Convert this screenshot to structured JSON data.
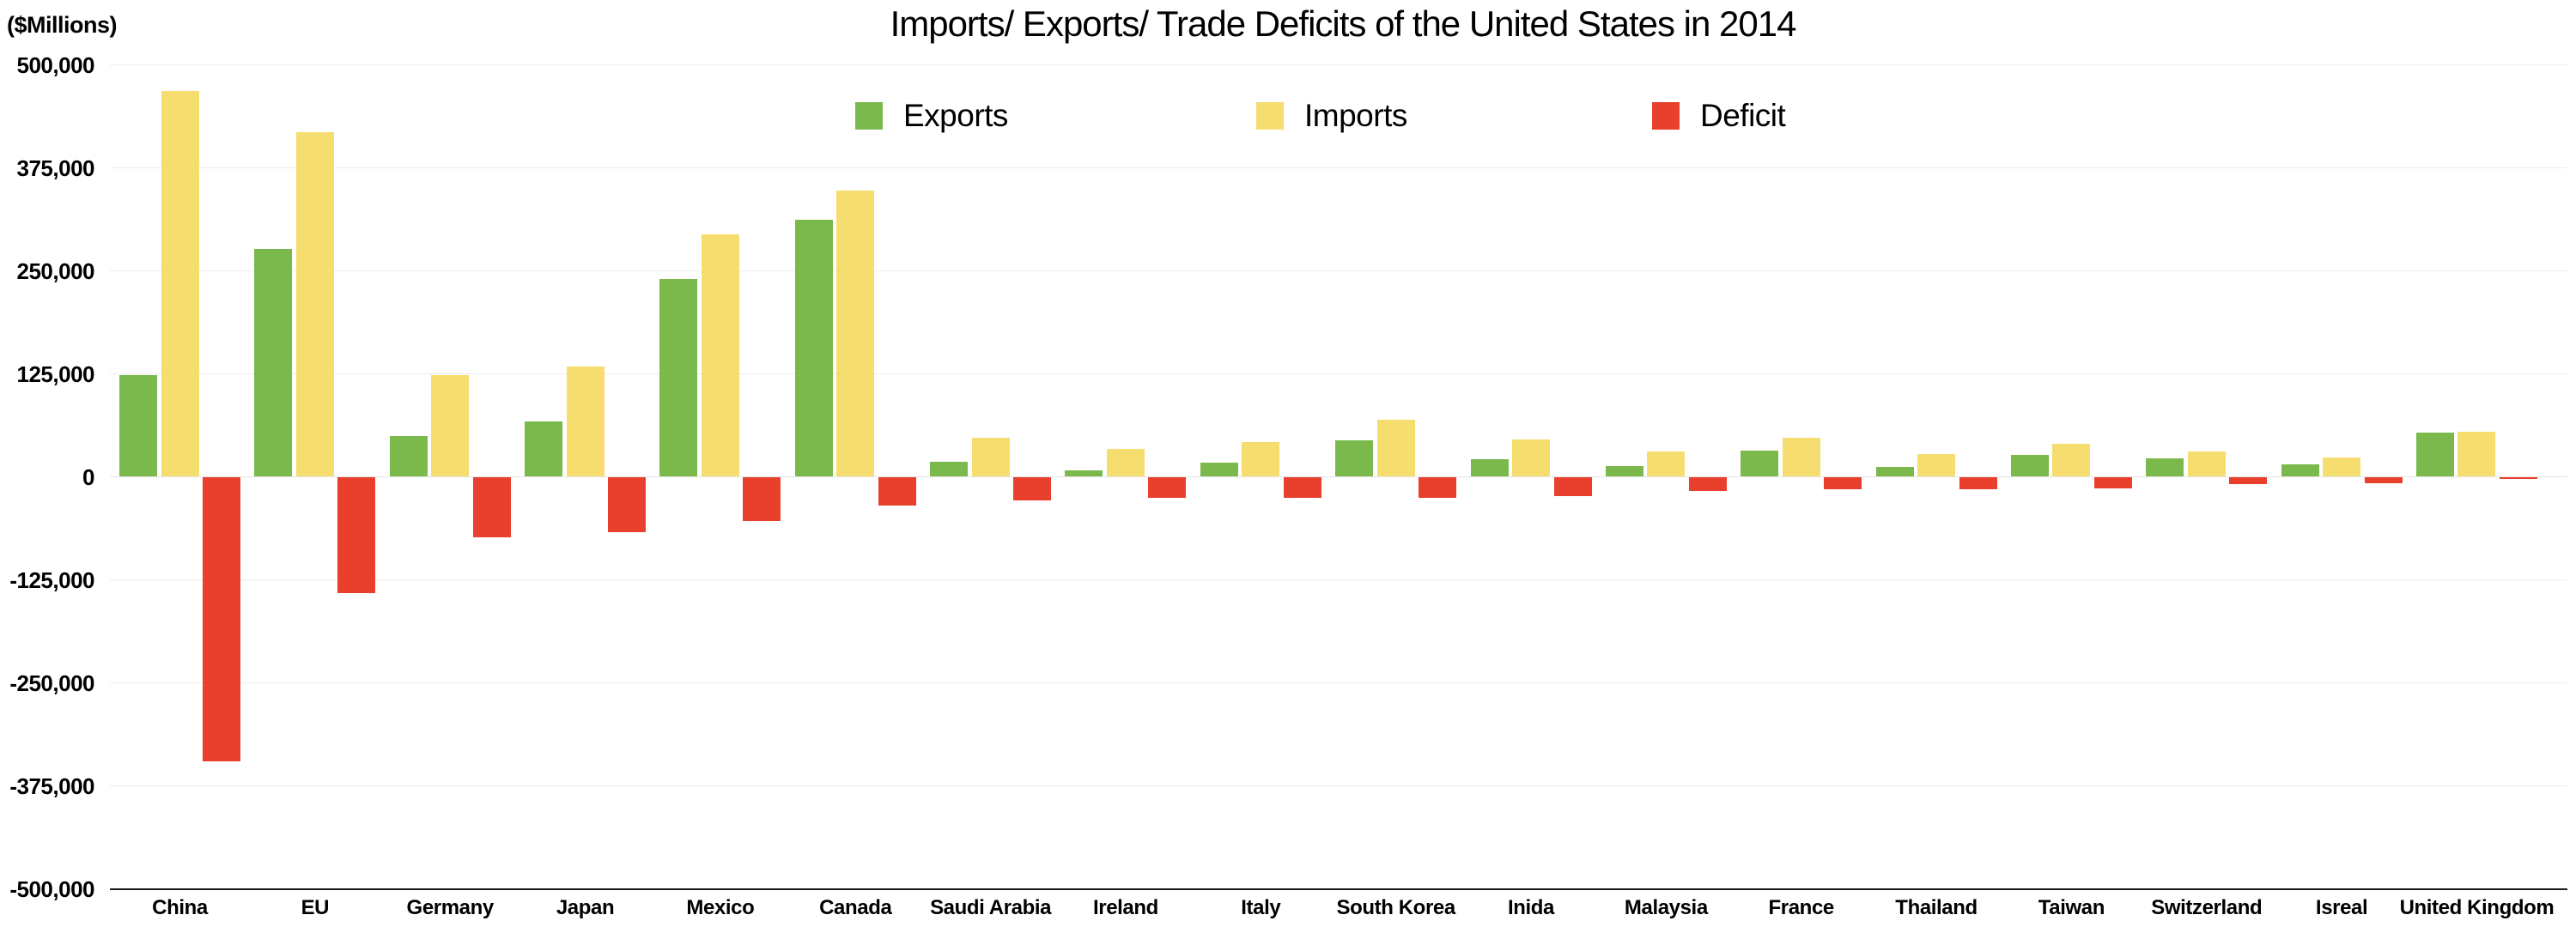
{
  "header": {
    "unit_label": "($Millions)",
    "title": "Imports/ Exports/ Trade Deficits of the United States in 2014"
  },
  "legend": [
    {
      "label": "Exports",
      "color": "#7bb94d"
    },
    {
      "label": "Imports",
      "color": "#f6dd6f"
    },
    {
      "label": "Deficit",
      "color": "#e8402d"
    }
  ],
  "chart_data": {
    "type": "bar",
    "title": "Imports/ Exports/ Trade Deficits of the United States in 2014",
    "unit": "$Millions",
    "categories": [
      "China",
      "EU",
      "Germany",
      "Japan",
      "Mexico",
      "Canada",
      "Saudi Arabia",
      "Ireland",
      "Italy",
      "South Korea",
      "Inida",
      "Malaysia",
      "France",
      "Thailand",
      "Taiwan",
      "Switzerland",
      "Isreal",
      "United Kingdom"
    ],
    "series": [
      {
        "name": "Exports",
        "color": "#7bb94d",
        "values": [
          123700,
          276700,
          49400,
          66800,
          240200,
          312400,
          18700,
          8000,
          17000,
          44500,
          21600,
          13100,
          31300,
          11800,
          26700,
          22200,
          15100,
          53800
        ]
      },
      {
        "name": "Imports",
        "color": "#f6dd6f",
        "values": [
          468500,
          417800,
          123300,
          133900,
          294200,
          347800,
          47000,
          34000,
          42100,
          69500,
          45400,
          30400,
          46900,
          27100,
          40600,
          31200,
          23000,
          54400
        ]
      },
      {
        "name": "Deficit",
        "color": "#e8402d",
        "values": [
          -344800,
          -141100,
          -73900,
          -67100,
          -53900,
          -35400,
          -28300,
          -26000,
          -25100,
          -25000,
          -23800,
          -17300,
          -15600,
          -15300,
          -13900,
          -9000,
          -7900,
          -600
        ]
      }
    ],
    "ylim": [
      -500000,
      500000
    ],
    "y_ticks": [
      {
        "value": 500000,
        "label": "500,000"
      },
      {
        "value": 375000,
        "label": "375,000"
      },
      {
        "value": 250000,
        "label": "250,000"
      },
      {
        "value": 125000,
        "label": "125,000"
      },
      {
        "value": 0,
        "label": "0"
      },
      {
        "value": -125000,
        "label": "-125,000"
      },
      {
        "value": -250000,
        "label": "-250,000"
      },
      {
        "value": -375000,
        "label": "-375,000"
      },
      {
        "value": -500000,
        "label": "-500,000"
      }
    ],
    "grid": true,
    "grid_color": "#ececec",
    "axis_color": "#1a1a1a",
    "legend_position": "top"
  }
}
